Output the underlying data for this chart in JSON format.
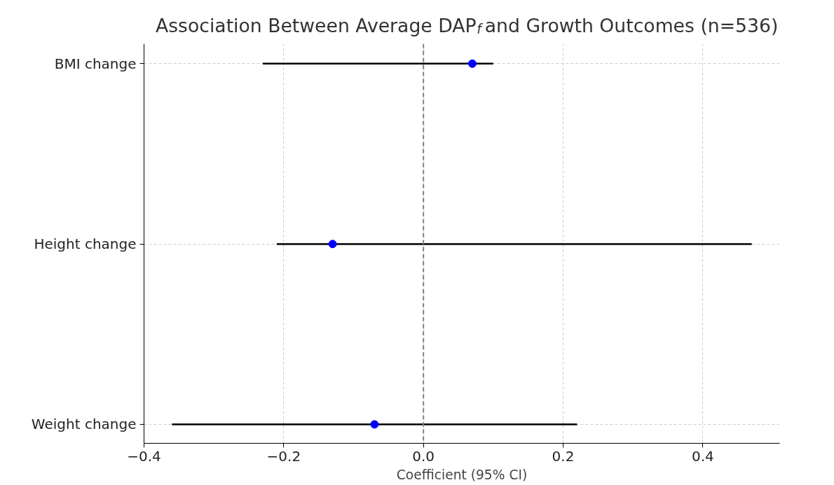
{
  "chart_data": {
    "type": "scatter",
    "orientation": "horizontal",
    "title": "Association Between Average DAP$_{f}$ and Growth Outcomes (n=536)",
    "xlabel": "Coefficient (95% CI)",
    "categories": [
      "BMI change",
      "Height change",
      "Weight change"
    ],
    "series": [
      {
        "color": "#0000ff",
        "values": [
          0.07,
          -0.13,
          -0.07
        ],
        "errors": [
          [
            -0.23,
            0.1
          ],
          [
            -0.21,
            0.47
          ],
          [
            -0.36,
            0.22
          ]
        ]
      }
    ],
    "xlim": [
      -0.4,
      0.51
    ],
    "xticks": [
      {
        "value": -0.4,
        "label": "−0.4"
      },
      {
        "value": -0.2,
        "label": "−0.2"
      },
      {
        "value": 0,
        "label": "0.0"
      },
      0.2,
      0.4
    ],
    "ref_lines": [
      {
        "axis": "x",
        "value": 0.0,
        "color": "#808080",
        "line_style": "dashed"
      }
    ],
    "grid": true,
    "marker": "circle"
  }
}
